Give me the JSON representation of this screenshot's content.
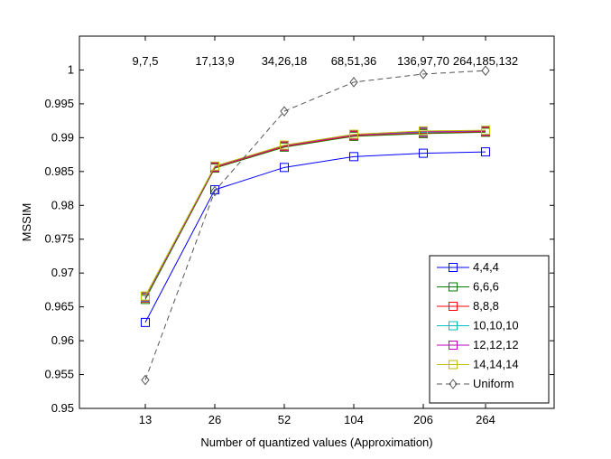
{
  "chart_data": {
    "type": "line",
    "title": "",
    "xlabel": "Number of quantized values (Approximation)",
    "ylabel": "MSSIM",
    "categories": [
      "13",
      "26",
      "52",
      "104",
      "206",
      "264"
    ],
    "ylim": [
      0.95,
      1.005
    ],
    "yticks": [
      "0.95",
      "0.955",
      "0.96",
      "0.965",
      "0.97",
      "0.975",
      "0.98",
      "0.985",
      "0.99",
      "0.995",
      "1"
    ],
    "grid": false,
    "legend_position": "bottom-right",
    "annotations": [
      "9,7,5",
      "17,13,9",
      "34,26,18",
      "68,51,36",
      "136,97,70",
      "264,185,132"
    ],
    "series": [
      {
        "name": "4,4,4",
        "color": "#0000ff",
        "marker": "square",
        "dash": "solid",
        "values": [
          0.9627,
          0.9823,
          0.9856,
          0.9872,
          0.9877,
          0.9879
        ]
      },
      {
        "name": "6,6,6",
        "color": "#008000",
        "marker": "square",
        "dash": "solid",
        "values": [
          0.9661,
          0.9855,
          0.9886,
          0.9902,
          0.9906,
          0.9908
        ]
      },
      {
        "name": "8,8,8",
        "color": "#ff0000",
        "marker": "square",
        "dash": "solid",
        "values": [
          0.9663,
          0.9856,
          0.9887,
          0.9903,
          0.9907,
          0.9909
        ]
      },
      {
        "name": "10,10,10",
        "color": "#00bfbf",
        "marker": "square",
        "dash": "solid",
        "values": [
          0.9664,
          0.9857,
          0.9888,
          0.9904,
          0.9908,
          0.991
        ]
      },
      {
        "name": "12,12,12",
        "color": "#bf00bf",
        "marker": "square",
        "dash": "solid",
        "values": [
          0.9665,
          0.9857,
          0.9888,
          0.9904,
          0.9909,
          0.991
        ]
      },
      {
        "name": "14,14,14",
        "color": "#bfbf00",
        "marker": "square",
        "dash": "solid",
        "values": [
          0.9666,
          0.9858,
          0.9889,
          0.9905,
          0.991,
          0.9911
        ]
      },
      {
        "name": "Uniform",
        "color": "#555555",
        "marker": "diamond",
        "dash": "dashed",
        "values": [
          0.9542,
          0.9821,
          0.9939,
          0.9982,
          0.9994,
          0.9999
        ]
      }
    ]
  }
}
